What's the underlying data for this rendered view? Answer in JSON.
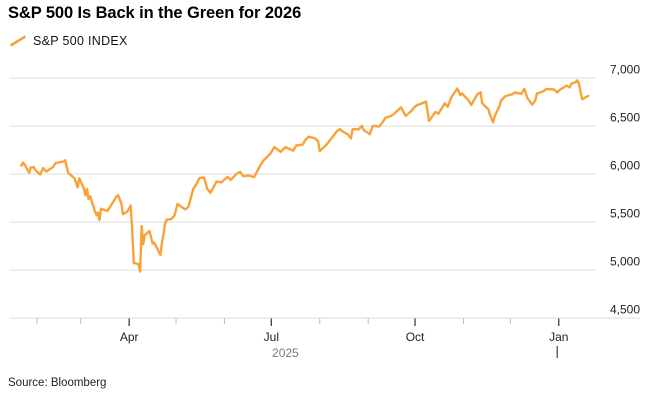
{
  "header": {
    "title": "S&P 500 Is Back in the Green for 2026"
  },
  "legend": {
    "label": "S&P 500 INDEX",
    "swatch_color": "#FAA23A"
  },
  "footer": {
    "source": "Source: Bloomberg"
  },
  "chart_data": {
    "type": "line",
    "title": "S&P 500 Is Back in the Green for 2026",
    "xlabel": "",
    "ylabel": "",
    "grid": "horizontal",
    "legend_position": "top-left",
    "ylim": [
      4500,
      7000
    ],
    "yticks": [
      4500,
      5000,
      5500,
      6000,
      6500,
      7000
    ],
    "x_range": [
      "2025-01-16",
      "2026-01-21"
    ],
    "xticks_major": [
      {
        "date": "2025-04-01",
        "label": "Apr"
      },
      {
        "date": "2025-07-01",
        "label": "Jul"
      },
      {
        "date": "2025-10-01",
        "label": "Oct"
      },
      {
        "date": "2026-01-01",
        "label": "Jan"
      }
    ],
    "xticks_minor": [
      "2025-02-01",
      "2025-03-01",
      "2025-05-01",
      "2025-06-01",
      "2025-08-01",
      "2025-09-01",
      "2025-11-01",
      "2025-12-01"
    ],
    "year_label": "2025",
    "year_divider_date": "2026-01-01",
    "colors": {
      "grid": "#dcdcdc",
      "tick_minor": "#bdbdbd",
      "tick_major": "#3f3f3f",
      "axis_text": "#1f1f1f",
      "muted_text": "#7a7a7a",
      "divider": "#5a5a5a"
    },
    "series": [
      {
        "name": "S&P 500 INDEX",
        "color": "#FAA23A",
        "points": [
          [
            "2025-01-22",
            6086
          ],
          [
            "2025-01-23",
            6119
          ],
          [
            "2025-01-24",
            6101
          ],
          [
            "2025-01-27",
            6012
          ],
          [
            "2025-01-28",
            6068
          ],
          [
            "2025-01-30",
            6071
          ],
          [
            "2025-01-31",
            6041
          ],
          [
            "2025-02-03",
            5995
          ],
          [
            "2025-02-05",
            6061
          ],
          [
            "2025-02-07",
            6026
          ],
          [
            "2025-02-11",
            6069
          ],
          [
            "2025-02-13",
            6115
          ],
          [
            "2025-02-18",
            6130
          ],
          [
            "2025-02-19",
            6144
          ],
          [
            "2025-02-21",
            6013
          ],
          [
            "2025-02-25",
            5955
          ],
          [
            "2025-02-27",
            5862
          ],
          [
            "2025-02-28",
            5955
          ],
          [
            "2025-03-03",
            5850
          ],
          [
            "2025-03-04",
            5778
          ],
          [
            "2025-03-05",
            5843
          ],
          [
            "2025-03-06",
            5739
          ],
          [
            "2025-03-07",
            5770
          ],
          [
            "2025-03-10",
            5615
          ],
          [
            "2025-03-11",
            5572
          ],
          [
            "2025-03-12",
            5599
          ],
          [
            "2025-03-13",
            5521
          ],
          [
            "2025-03-14",
            5639
          ],
          [
            "2025-03-18",
            5615
          ],
          [
            "2025-03-20",
            5663
          ],
          [
            "2025-03-24",
            5768
          ],
          [
            "2025-03-25",
            5777
          ],
          [
            "2025-03-27",
            5693
          ],
          [
            "2025-03-28",
            5581
          ],
          [
            "2025-03-31",
            5612
          ],
          [
            "2025-04-02",
            5671
          ],
          [
            "2025-04-03",
            5396
          ],
          [
            "2025-04-04",
            5074
          ],
          [
            "2025-04-07",
            5062
          ],
          [
            "2025-04-08",
            4983
          ],
          [
            "2025-04-09",
            5457
          ],
          [
            "2025-04-10",
            5268
          ],
          [
            "2025-04-11",
            5363
          ],
          [
            "2025-04-14",
            5406
          ],
          [
            "2025-04-16",
            5276
          ],
          [
            "2025-04-17",
            5283
          ],
          [
            "2025-04-21",
            5158
          ],
          [
            "2025-04-22",
            5288
          ],
          [
            "2025-04-23",
            5376
          ],
          [
            "2025-04-24",
            5485
          ],
          [
            "2025-04-25",
            5525
          ],
          [
            "2025-04-28",
            5529
          ],
          [
            "2025-04-30",
            5569
          ],
          [
            "2025-05-02",
            5687
          ],
          [
            "2025-05-05",
            5650
          ],
          [
            "2025-05-07",
            5631
          ],
          [
            "2025-05-09",
            5660
          ],
          [
            "2025-05-12",
            5844
          ],
          [
            "2025-05-14",
            5893
          ],
          [
            "2025-05-16",
            5958
          ],
          [
            "2025-05-19",
            5963
          ],
          [
            "2025-05-21",
            5845
          ],
          [
            "2025-05-23",
            5803
          ],
          [
            "2025-05-27",
            5922
          ],
          [
            "2025-05-30",
            5912
          ],
          [
            "2025-06-03",
            5970
          ],
          [
            "2025-06-05",
            5939
          ],
          [
            "2025-06-09",
            6006
          ],
          [
            "2025-06-11",
            6022
          ],
          [
            "2025-06-13",
            5977
          ],
          [
            "2025-06-17",
            5983
          ],
          [
            "2025-06-20",
            5968
          ],
          [
            "2025-06-24",
            6092
          ],
          [
            "2025-06-26",
            6141
          ],
          [
            "2025-06-30",
            6205
          ],
          [
            "2025-07-03",
            6279
          ],
          [
            "2025-07-07",
            6230
          ],
          [
            "2025-07-10",
            6280
          ],
          [
            "2025-07-15",
            6244
          ],
          [
            "2025-07-17",
            6297
          ],
          [
            "2025-07-21",
            6306
          ],
          [
            "2025-07-23",
            6359
          ],
          [
            "2025-07-25",
            6389
          ],
          [
            "2025-07-29",
            6371
          ],
          [
            "2025-07-31",
            6339
          ],
          [
            "2025-08-01",
            6238
          ],
          [
            "2025-08-05",
            6299
          ],
          [
            "2025-08-07",
            6340
          ],
          [
            "2025-08-12",
            6446
          ],
          [
            "2025-08-14",
            6469
          ],
          [
            "2025-08-15",
            6450
          ],
          [
            "2025-08-19",
            6411
          ],
          [
            "2025-08-21",
            6370
          ],
          [
            "2025-08-22",
            6467
          ],
          [
            "2025-08-26",
            6466
          ],
          [
            "2025-08-28",
            6502
          ],
          [
            "2025-08-29",
            6460
          ],
          [
            "2025-09-02",
            6415
          ],
          [
            "2025-09-04",
            6502
          ],
          [
            "2025-09-08",
            6495
          ],
          [
            "2025-09-10",
            6532
          ],
          [
            "2025-09-12",
            6584
          ],
          [
            "2025-09-16",
            6607
          ],
          [
            "2025-09-18",
            6632
          ],
          [
            "2025-09-22",
            6694
          ],
          [
            "2025-09-25",
            6605
          ],
          [
            "2025-09-29",
            6661
          ],
          [
            "2025-09-30",
            6688
          ],
          [
            "2025-10-02",
            6715
          ],
          [
            "2025-10-06",
            6740
          ],
          [
            "2025-10-08",
            6754
          ],
          [
            "2025-10-10",
            6553
          ],
          [
            "2025-10-14",
            6645
          ],
          [
            "2025-10-16",
            6629
          ],
          [
            "2025-10-20",
            6736
          ],
          [
            "2025-10-22",
            6700
          ],
          [
            "2025-10-24",
            6792
          ],
          [
            "2025-10-28",
            6891
          ],
          [
            "2025-10-30",
            6822
          ],
          [
            "2025-10-31",
            6840
          ],
          [
            "2025-11-04",
            6772
          ],
          [
            "2025-11-06",
            6720
          ],
          [
            "2025-11-10",
            6833
          ],
          [
            "2025-11-12",
            6851
          ],
          [
            "2025-11-13",
            6737
          ],
          [
            "2025-11-17",
            6672
          ],
          [
            "2025-11-18",
            6617
          ],
          [
            "2025-11-20",
            6539
          ],
          [
            "2025-11-21",
            6603
          ],
          [
            "2025-11-24",
            6705
          ],
          [
            "2025-11-25",
            6766
          ],
          [
            "2025-11-28",
            6813
          ],
          [
            "2025-12-02",
            6829
          ],
          [
            "2025-12-04",
            6850
          ],
          [
            "2025-12-08",
            6834
          ],
          [
            "2025-12-10",
            6886
          ],
          [
            "2025-12-12",
            6790
          ],
          [
            "2025-12-15",
            6722
          ],
          [
            "2025-12-17",
            6768
          ],
          [
            "2025-12-18",
            6838
          ],
          [
            "2025-12-22",
            6860
          ],
          [
            "2025-12-24",
            6885
          ],
          [
            "2025-12-29",
            6880
          ],
          [
            "2025-12-31",
            6851
          ],
          [
            "2026-01-02",
            6880
          ],
          [
            "2026-01-06",
            6921
          ],
          [
            "2026-01-08",
            6902
          ],
          [
            "2026-01-09",
            6940
          ],
          [
            "2026-01-12",
            6958
          ],
          [
            "2026-01-13",
            6975
          ],
          [
            "2026-01-14",
            6931
          ],
          [
            "2026-01-15",
            6852
          ],
          [
            "2026-01-16",
            6779
          ],
          [
            "2026-01-20",
            6815
          ]
        ]
      }
    ]
  }
}
